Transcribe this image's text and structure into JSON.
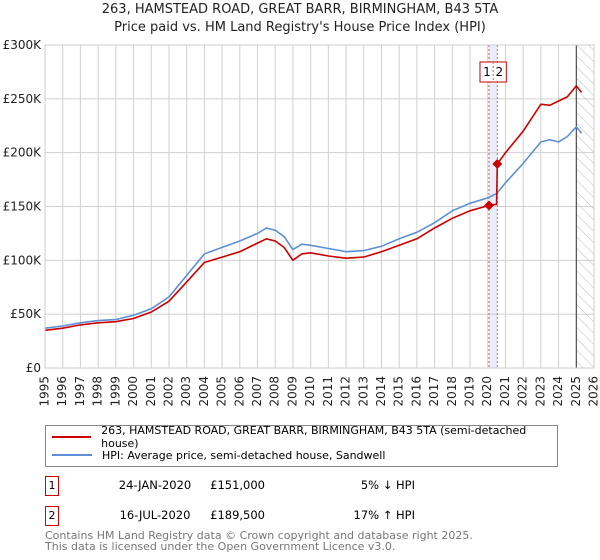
{
  "chart_data": {
    "type": "line",
    "title": "263, HAMSTEAD ROAD, GREAT BARR, BIRMINGHAM, B43 5TA",
    "subtitle": "Price paid vs. HM Land Registry's House Price Index (HPI)",
    "xlim": [
      1995,
      2026
    ],
    "ylim": [
      0,
      300000
    ],
    "x_ticks": [
      "1995",
      "1996",
      "1997",
      "1998",
      "1999",
      "2000",
      "2001",
      "2002",
      "2003",
      "2004",
      "2005",
      "2006",
      "2007",
      "2008",
      "2009",
      "2010",
      "2011",
      "2012",
      "2013",
      "2014",
      "2015",
      "2016",
      "2017",
      "2018",
      "2019",
      "2020",
      "2021",
      "2022",
      "2023",
      "2024",
      "2025",
      "2026"
    ],
    "y_ticks": [
      {
        "v": 0,
        "label": "£0"
      },
      {
        "v": 50000,
        "label": "£50K"
      },
      {
        "v": 100000,
        "label": "£100K"
      },
      {
        "v": 150000,
        "label": "£150K"
      },
      {
        "v": 200000,
        "label": "£200K"
      },
      {
        "v": 250000,
        "label": "£250K"
      },
      {
        "v": 300000,
        "label": "£300K"
      }
    ],
    "grid": true,
    "series": [
      {
        "name": "263, HAMSTEAD ROAD, GREAT BARR, BIRMINGHAM, B43 5TA (semi-detached house)",
        "color": "#cc0000",
        "x": [
          1995,
          1996,
          1997,
          1998,
          1999,
          2000,
          2001,
          2002,
          2003,
          2004,
          2005,
          2006,
          2007,
          2007.5,
          2008,
          2008.5,
          2009,
          2009.5,
          2010,
          2011,
          2012,
          2013,
          2014,
          2015,
          2016,
          2017,
          2018,
          2019,
          2020.07,
          2020.5,
          2020.54,
          2021,
          2022,
          2023,
          2023.5,
          2024,
          2024.5,
          2025,
          2025.3
        ],
        "y": [
          35000,
          37000,
          40000,
          42000,
          43000,
          46000,
          52000,
          62000,
          80000,
          98000,
          103000,
          108000,
          116000,
          120000,
          118000,
          112000,
          100000,
          106000,
          107000,
          104000,
          102000,
          103000,
          108000,
          114000,
          120000,
          130000,
          139000,
          146000,
          151000,
          152000,
          189500,
          200000,
          220000,
          245000,
          244000,
          248000,
          252000,
          262000,
          256000
        ]
      },
      {
        "name": "HPI: Average price, semi-detached house, Sandwell",
        "color": "#5b8fd6",
        "x": [
          1995,
          1996,
          1997,
          1998,
          1999,
          2000,
          2001,
          2002,
          2003,
          2004,
          2005,
          2006,
          2007,
          2007.5,
          2008,
          2008.5,
          2009,
          2009.5,
          2010,
          2011,
          2012,
          2013,
          2014,
          2015,
          2016,
          2017,
          2018,
          2019,
          2020,
          2020.5,
          2021,
          2022,
          2023,
          2023.5,
          2024,
          2024.5,
          2025,
          2025.3
        ],
        "y": [
          37000,
          39000,
          42000,
          44000,
          45000,
          49000,
          55000,
          66000,
          86000,
          106000,
          112000,
          118000,
          125000,
          130000,
          128000,
          122000,
          110000,
          115000,
          114000,
          111000,
          108000,
          109000,
          113000,
          120000,
          126000,
          135000,
          146000,
          153000,
          158000,
          162000,
          172000,
          190000,
          210000,
          212000,
          210000,
          215000,
          224000,
          218000
        ]
      }
    ],
    "sales": [
      {
        "label": "1",
        "x": 2020.07,
        "y": 151000,
        "date": "24-JAN-2020",
        "price": "£151,000",
        "hpi": "5% ↓ HPI"
      },
      {
        "label": "2",
        "x": 2020.54,
        "y": 189500,
        "date": "16-JUL-2020",
        "price": "£189,500",
        "hpi": "17% ↑ HPI"
      }
    ],
    "forecast_start": 2025.0,
    "legend_position": "below"
  },
  "footer": {
    "line1": "Contains HM Land Registry data © Crown copyright and database right 2025.",
    "line2": "This data is licensed under the Open Government Licence v3.0."
  }
}
